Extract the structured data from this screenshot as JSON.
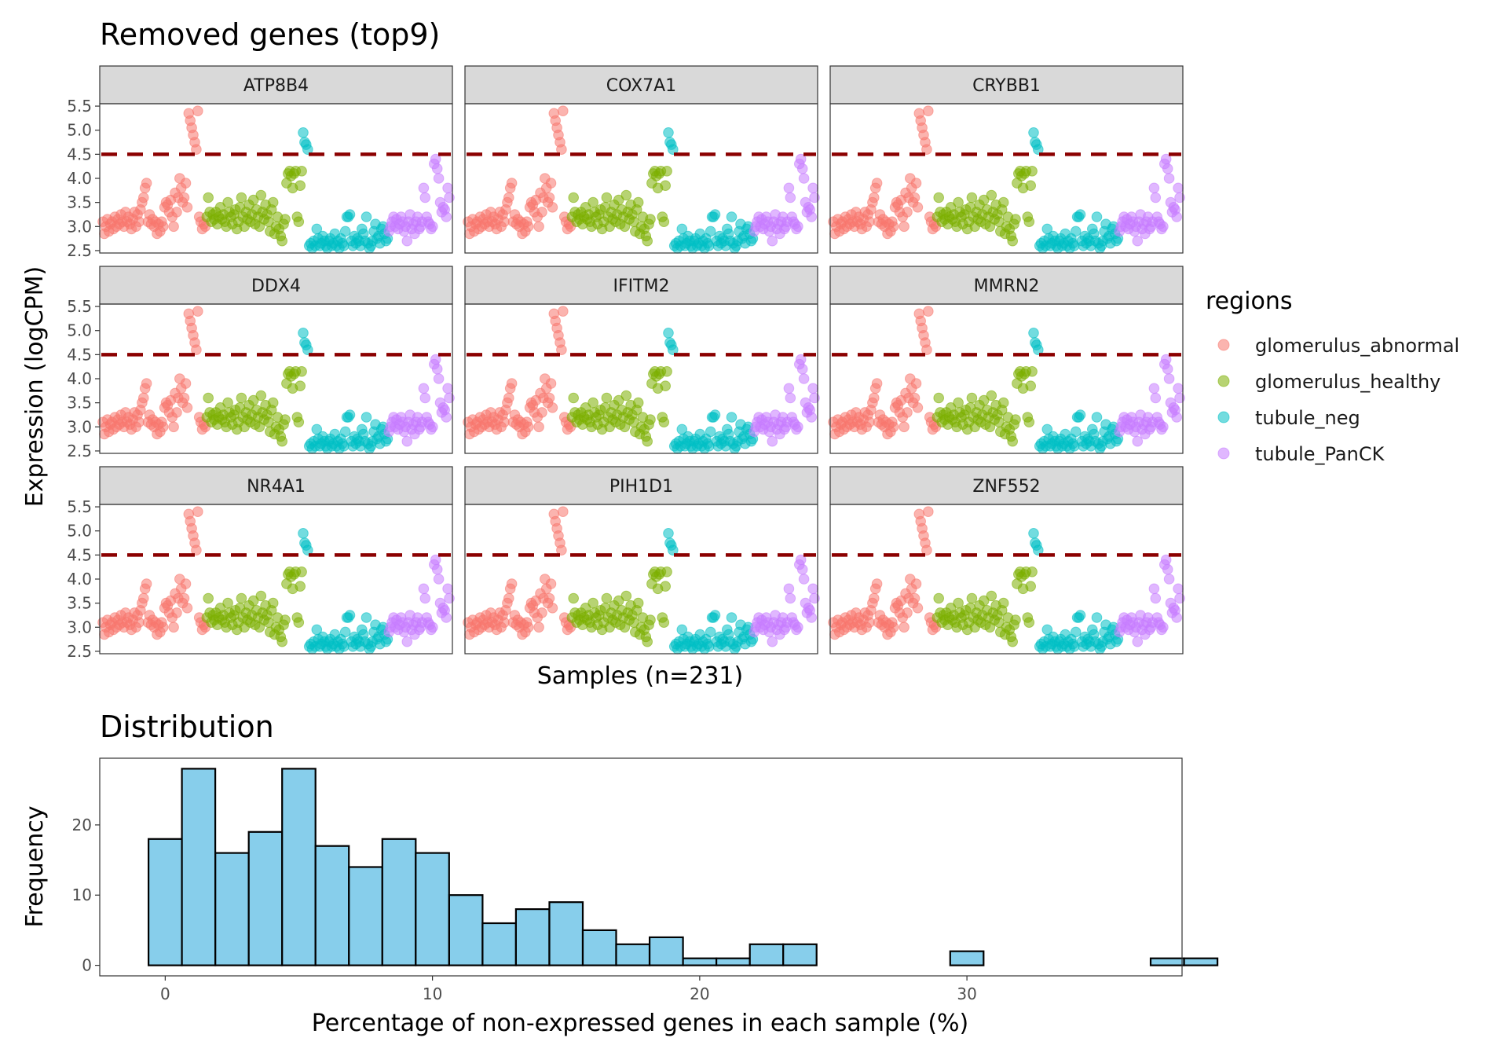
{
  "chart_data": [
    {
      "type": "scatter",
      "title": "Removed genes (top9)",
      "xlabel": "Samples (n=231)",
      "ylabel": "Expression (logCPM)",
      "ylim": [
        2.45,
        5.55
      ],
      "yticks": [
        "2.5",
        "3.0",
        "3.5",
        "4.0",
        "4.5",
        "5.0",
        "5.5"
      ],
      "threshold": 4.5,
      "threshold_color": "#8B0000",
      "n_samples": 231,
      "panels": [
        "ATP8B4",
        "COX7A1",
        "CRYBB1",
        "DDX4",
        "IFITM2",
        "MMRN2",
        "NR4A1",
        "PIH1D1",
        "ZNF552"
      ],
      "legend": {
        "title": "regions",
        "placement": "right",
        "items": [
          {
            "label": "glomerulus_abnormal",
            "color": "#F8766D"
          },
          {
            "label": "glomerulus_healthy",
            "color": "#7CAE00"
          },
          {
            "label": "tubule_neg",
            "color": "#00BFC4"
          },
          {
            "label": "tubule_PanCK",
            "color": "#C77CFF"
          }
        ]
      },
      "series": [
        {
          "name": "glomerulus_abnormal",
          "x": [
            1,
            2,
            3,
            4,
            5,
            6,
            7,
            8,
            9,
            10,
            11,
            12,
            13,
            14,
            15,
            16,
            17,
            18,
            19,
            20,
            21,
            22,
            23,
            24,
            25,
            26,
            27,
            28,
            29,
            30,
            31,
            32,
            33,
            34,
            35,
            36,
            37,
            38,
            39,
            40,
            41,
            42,
            43,
            44,
            45,
            46,
            47,
            48,
            49,
            50,
            51,
            52,
            53,
            54,
            55,
            56,
            57,
            58,
            59,
            60,
            61,
            62,
            63,
            64,
            65,
            66,
            67,
            68,
            69
          ],
          "values": [
            3.1,
            2.85,
            3.0,
            3.15,
            2.9,
            3.05,
            3.1,
            2.95,
            3.2,
            3.0,
            3.15,
            3.05,
            3.25,
            3.1,
            3.0,
            3.3,
            3.1,
            3.2,
            3.05,
            2.95,
            3.15,
            3.3,
            3.0,
            3.25,
            3.1,
            3.35,
            3.5,
            3.6,
            3.8,
            3.9,
            3.1,
            3.25,
            3.05,
            3.15,
            3.0,
            3.1,
            2.85,
            3.05,
            2.9,
            3.1,
            3.0,
            3.4,
            3.5,
            3.45,
            3.3,
            3.55,
            3.2,
            3.0,
            3.7,
            3.3,
            3.6,
            4.0,
            3.8,
            3.5,
            3.6,
            3.9,
            3.4,
            5.35,
            5.2,
            5.05,
            4.9,
            4.75,
            4.6,
            5.4,
            3.2,
            3.1,
            2.95,
            3.05,
            3.0
          ]
        },
        {
          "name": "glomerulus_healthy",
          "x": [
            70,
            71,
            72,
            73,
            74,
            75,
            76,
            77,
            78,
            79,
            80,
            81,
            82,
            83,
            84,
            85,
            86,
            87,
            88,
            89,
            90,
            91,
            92,
            93,
            94,
            95,
            96,
            97,
            98,
            99,
            100,
            101,
            102,
            103,
            104,
            105,
            106,
            107,
            108,
            109,
            110,
            111,
            112,
            113,
            114,
            115,
            116,
            117,
            118,
            119,
            120,
            121,
            122,
            123,
            124,
            125,
            126,
            127,
            128,
            129,
            130,
            131,
            132,
            133
          ],
          "values": [
            3.2,
            3.6,
            3.3,
            3.1,
            3.25,
            3.15,
            3.3,
            3.05,
            3.2,
            3.4,
            3.15,
            3.25,
            3.1,
            3.0,
            3.5,
            3.3,
            3.2,
            3.05,
            3.25,
            3.35,
            2.95,
            3.1,
            3.4,
            3.6,
            3.2,
            3.0,
            3.3,
            3.15,
            3.45,
            3.1,
            3.25,
            3.55,
            3.05,
            3.35,
            3.2,
            3.0,
            3.65,
            3.3,
            3.15,
            3.45,
            3.25,
            3.1,
            2.9,
            3.35,
            3.5,
            2.85,
            3.0,
            3.2,
            2.95,
            2.8,
            2.7,
            3.05,
            3.15,
            3.9,
            4.1,
            4.15,
            4.05,
            3.8,
            4.1,
            4.15,
            3.2,
            3.1,
            3.85,
            4.15
          ]
        },
        {
          "name": "tubule_neg",
          "x": [
            134,
            135,
            136,
            137,
            138,
            139,
            140,
            141,
            142,
            143,
            144,
            145,
            146,
            147,
            148,
            149,
            150,
            151,
            152,
            153,
            154,
            155,
            156,
            157,
            158,
            159,
            160,
            161,
            162,
            163,
            164,
            165,
            166,
            167,
            168,
            169,
            170,
            171,
            172,
            173,
            174,
            175,
            176,
            177,
            178,
            179,
            180,
            181,
            182,
            183,
            184,
            185,
            186,
            187,
            188,
            189,
            190
          ],
          "values": [
            4.95,
            4.75,
            4.7,
            4.6,
            2.6,
            2.65,
            2.55,
            2.7,
            2.6,
            2.95,
            2.75,
            2.6,
            2.65,
            2.8,
            2.7,
            2.6,
            2.55,
            2.7,
            2.75,
            2.6,
            2.65,
            2.85,
            2.6,
            2.7,
            2.55,
            2.75,
            2.65,
            2.6,
            2.9,
            3.2,
            3.2,
            3.25,
            2.7,
            2.6,
            2.8,
            2.65,
            2.75,
            2.7,
            2.6,
            2.95,
            2.85,
            2.7,
            3.2,
            2.65,
            2.55,
            2.6,
            2.7,
            2.9,
            3.05,
            2.75,
            2.8,
            2.65,
            2.95,
            3.0,
            2.85,
            2.7,
            2.75
          ]
        },
        {
          "name": "tubule_PanCK",
          "x": [
            191,
            192,
            193,
            194,
            195,
            196,
            197,
            198,
            199,
            200,
            201,
            202,
            203,
            204,
            205,
            206,
            207,
            208,
            209,
            210,
            211,
            212,
            213,
            214,
            215,
            216,
            217,
            218,
            219,
            220,
            221,
            222,
            223,
            224,
            225,
            226,
            227,
            228,
            229,
            230,
            231
          ],
          "values": [
            2.9,
            3.0,
            3.1,
            3.2,
            3.0,
            3.15,
            2.95,
            3.05,
            3.2,
            3.1,
            2.9,
            3.0,
            2.7,
            3.1,
            3.25,
            2.95,
            3.05,
            2.85,
            3.1,
            3.2,
            2.95,
            3.0,
            3.1,
            3.8,
            3.6,
            3.2,
            3.1,
            3.05,
            2.95,
            3.0,
            4.3,
            4.4,
            4.2,
            4.0,
            3.5,
            3.3,
            3.4,
            3.35,
            3.2,
            3.8,
            3.6
          ]
        }
      ]
    },
    {
      "type": "bar",
      "title": "Distribution",
      "xlabel": "Percentage of non-expressed genes in each sample (%)",
      "ylabel": "Frequency",
      "xlim": [
        -2.45,
        38.05
      ],
      "ylim": [
        -1.5,
        29.5
      ],
      "xticks": [
        "0",
        "10",
        "20",
        "30"
      ],
      "yticks": [
        "0",
        "10",
        "20"
      ],
      "bin_width": 1.25,
      "bin_start": -0.625,
      "bar_color": "#87CEEB",
      "values": [
        18,
        28,
        16,
        19,
        28,
        17,
        14,
        18,
        16,
        10,
        6,
        8,
        9,
        5,
        3,
        4,
        1,
        1,
        3,
        3,
        0,
        0,
        0,
        0,
        2,
        0,
        0,
        0,
        0,
        0,
        1,
        1
      ]
    }
  ]
}
